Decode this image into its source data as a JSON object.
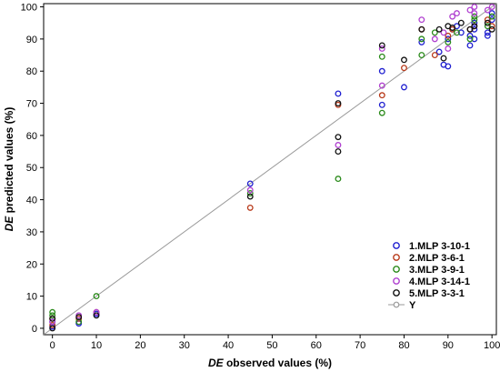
{
  "chart_data": {
    "type": "scatter",
    "title": "",
    "xlabel_prefix": "DE",
    "xlabel_suffix": " observed values (%)",
    "ylabel_prefix": "DE",
    "ylabel_suffix": " predicted values (%)",
    "xlim": [
      -2,
      101
    ],
    "ylim": [
      -2,
      101
    ],
    "xticks": [
      0,
      10,
      20,
      30,
      40,
      50,
      60,
      70,
      80,
      90,
      100
    ],
    "yticks": [
      0,
      10,
      20,
      30,
      40,
      50,
      60,
      70,
      80,
      90,
      100
    ],
    "grid": false,
    "legend_position": "bottom-right",
    "series": [
      {
        "name": "1.MLP 3-10-1",
        "color": "#1f1fd0",
        "marker": "circle",
        "points": [
          [
            0,
            0.5
          ],
          [
            0,
            2
          ],
          [
            6,
            1.5
          ],
          [
            10,
            4.5
          ],
          [
            45,
            45
          ],
          [
            65,
            73
          ],
          [
            75,
            69.5
          ],
          [
            75,
            80
          ],
          [
            80,
            75
          ],
          [
            84,
            89
          ],
          [
            88,
            86
          ],
          [
            89,
            82
          ],
          [
            90,
            81.5
          ],
          [
            90,
            90
          ],
          [
            91,
            93
          ],
          [
            92,
            94
          ],
          [
            93,
            92
          ],
          [
            95,
            88
          ],
          [
            95,
            91
          ],
          [
            96,
            90
          ],
          [
            96,
            93
          ],
          [
            96,
            95
          ],
          [
            99,
            91
          ],
          [
            99,
            92
          ],
          [
            100,
            96
          ],
          [
            100,
            98
          ]
        ]
      },
      {
        "name": "2.MLP 3-6-1",
        "color": "#b83a1a",
        "marker": "circle",
        "points": [
          [
            0,
            1
          ],
          [
            0,
            3
          ],
          [
            6,
            3
          ],
          [
            10,
            5
          ],
          [
            45,
            37.5
          ],
          [
            65,
            69.5
          ],
          [
            75,
            72.5
          ],
          [
            80,
            81
          ],
          [
            84,
            93
          ],
          [
            87,
            85
          ],
          [
            90,
            91
          ],
          [
            91,
            93
          ],
          [
            95,
            93
          ],
          [
            96,
            94
          ],
          [
            99,
            96
          ],
          [
            100,
            94
          ]
        ]
      },
      {
        "name": "3.MLP 3-9-1",
        "color": "#2a8a1a",
        "marker": "circle",
        "points": [
          [
            0,
            4
          ],
          [
            0,
            5
          ],
          [
            6,
            2
          ],
          [
            10,
            10
          ],
          [
            45,
            42
          ],
          [
            65,
            46.5
          ],
          [
            75,
            67
          ],
          [
            75,
            84.5
          ],
          [
            84,
            85
          ],
          [
            84,
            90
          ],
          [
            87,
            92
          ],
          [
            90,
            89
          ],
          [
            92,
            92
          ],
          [
            95,
            90
          ],
          [
            96,
            96
          ],
          [
            96,
            97
          ],
          [
            99,
            94
          ],
          [
            100,
            97
          ]
        ]
      },
      {
        "name": "4.MLP 3-14-1",
        "color": "#b040d0",
        "marker": "circle",
        "points": [
          [
            0,
            2
          ],
          [
            6,
            4
          ],
          [
            10,
            5
          ],
          [
            45,
            43
          ],
          [
            65,
            57
          ],
          [
            75,
            75.5
          ],
          [
            75,
            87
          ],
          [
            84,
            96
          ],
          [
            87,
            90
          ],
          [
            89,
            92
          ],
          [
            90,
            87
          ],
          [
            91,
            97
          ],
          [
            92,
            98
          ],
          [
            95,
            99
          ],
          [
            96,
            100
          ],
          [
            96,
            98
          ],
          [
            99,
            99
          ],
          [
            100,
            100
          ]
        ]
      },
      {
        "name": "5.MLP 3-3-1",
        "color": "#101010",
        "marker": "circle",
        "points": [
          [
            0,
            0
          ],
          [
            0,
            3
          ],
          [
            6,
            3.5
          ],
          [
            10,
            4
          ],
          [
            45,
            41
          ],
          [
            65,
            55
          ],
          [
            65,
            59.5
          ],
          [
            65,
            70
          ],
          [
            75,
            88
          ],
          [
            80,
            83.5
          ],
          [
            84,
            93
          ],
          [
            88,
            93
          ],
          [
            89,
            84
          ],
          [
            90,
            94
          ],
          [
            91,
            93.5
          ],
          [
            93,
            95
          ],
          [
            95,
            93
          ],
          [
            96,
            94
          ],
          [
            99,
            95
          ],
          [
            100,
            93
          ]
        ]
      },
      {
        "name": "Y",
        "color": "#9a9a9a",
        "marker": "line",
        "points": [
          [
            -2,
            -2
          ],
          [
            101,
            101
          ]
        ]
      }
    ]
  }
}
